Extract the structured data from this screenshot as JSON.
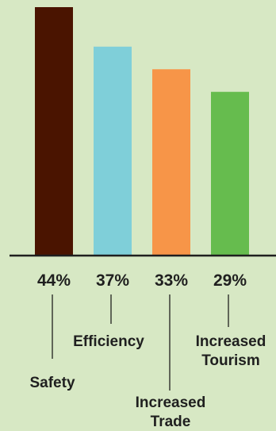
{
  "chart_data": {
    "type": "bar",
    "title": "",
    "xlabel": "",
    "ylabel": "",
    "ylim": [
      0,
      44
    ],
    "categories": [
      "Safety",
      "Efficiency",
      "Increased Trade",
      "Increased Tourism"
    ],
    "category_lines": [
      [
        "Safety"
      ],
      [
        "Efficiency"
      ],
      [
        "Increased",
        "Trade"
      ],
      [
        "Increased",
        "Tourism"
      ]
    ],
    "values": [
      44,
      37,
      33,
      29
    ],
    "value_labels": [
      "44%",
      "37%",
      "33%",
      "29%"
    ],
    "colors": [
      "#4a1400",
      "#7fcfd9",
      "#f79548",
      "#66bc4e"
    ],
    "background": "#d7e8c4",
    "axis_color": "#1f1f1f",
    "grid": false,
    "legend": "none"
  }
}
